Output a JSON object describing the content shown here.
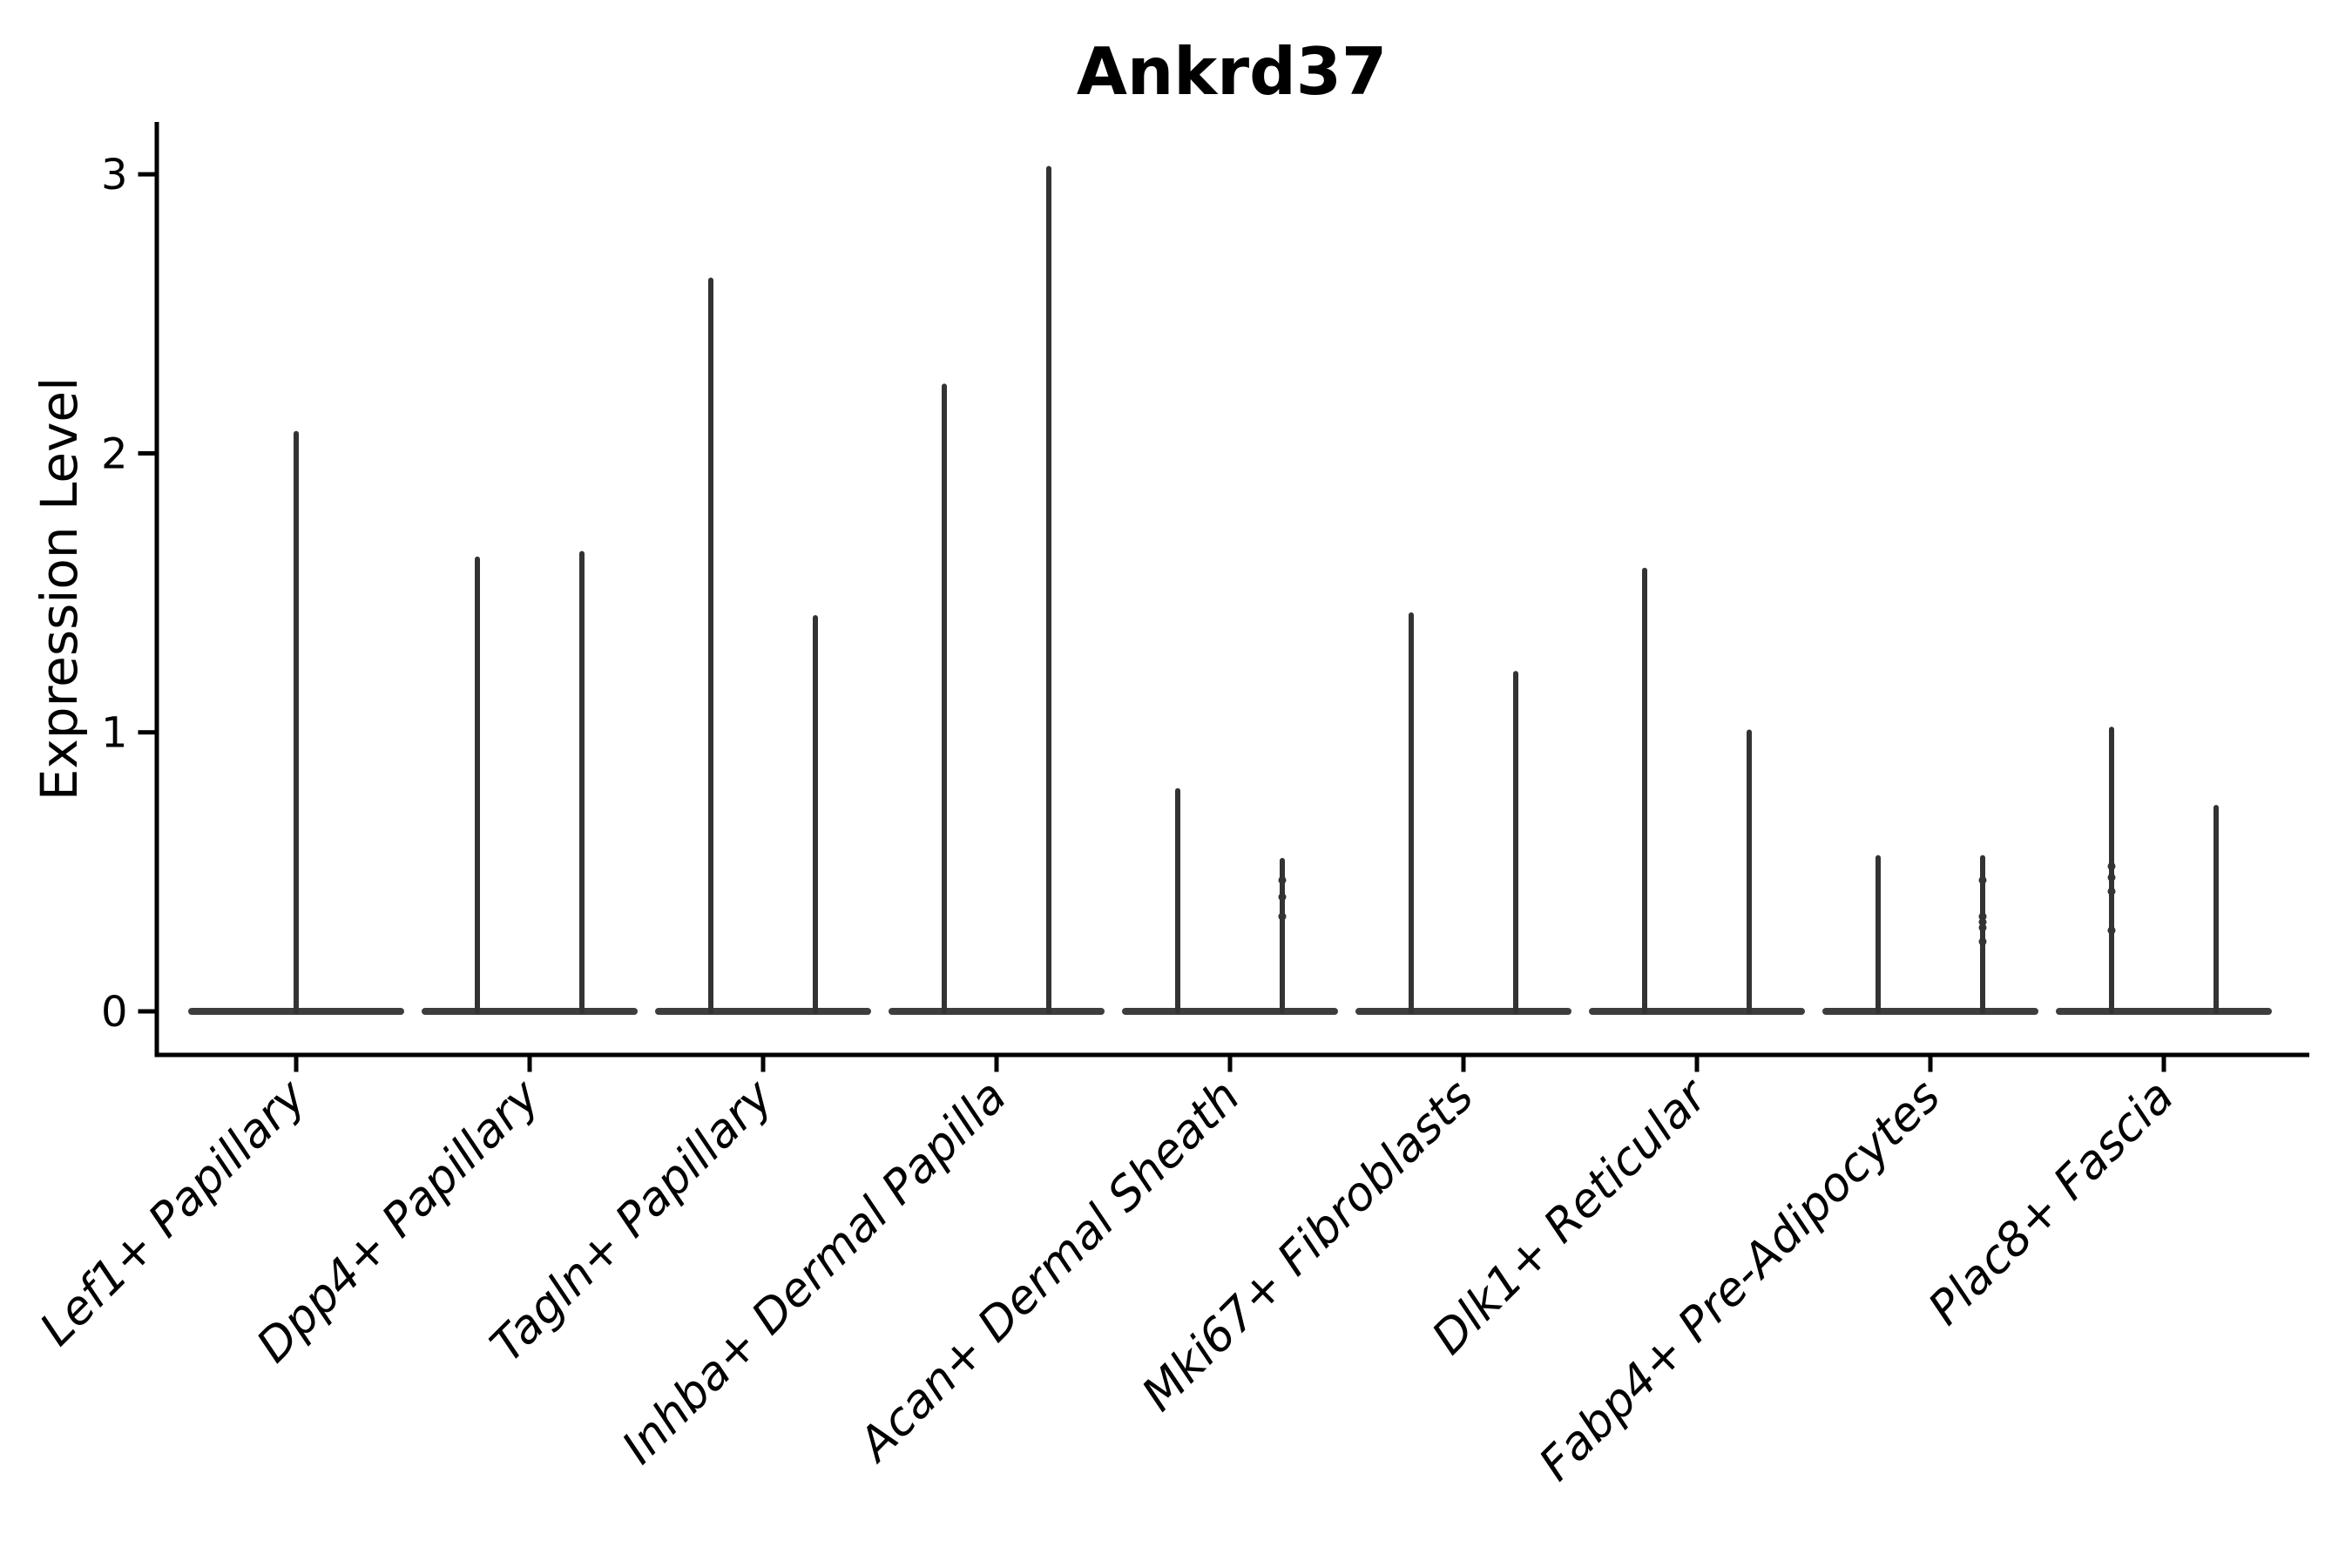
{
  "chart_data": {
    "type": "violin",
    "title": "Ankrd37",
    "xlabel": "",
    "ylabel": "Expression Level",
    "ylim": [
      -0.16,
      3.19
    ],
    "yticks": [
      0,
      1,
      2,
      3
    ],
    "grid": false,
    "legend": "none",
    "background": "#ffffff",
    "categories": [
      "Lef1+ Papillary",
      "Dpp4+ Papillary",
      "Tagln+ Papillary",
      "Inhba+ Dermal Papilla",
      "Acan+ Dermal Sheath",
      "Mki67+ Fibroblasts",
      "Dlk1+ Reticular",
      "Fabp4+ Pre-Adipocytes",
      "Plac8+ Fascia"
    ],
    "style_note": "collapsed violins: wide flat base at 0 expression with a thin spike up to the max expression; two dodged violins per category except the first which has one full-width violin",
    "groups": [
      {
        "category": "Lef1+ Papillary",
        "violins": [
          {
            "max_expression": 2.08
          }
        ]
      },
      {
        "category": "Dpp4+ Papillary",
        "violins": [
          {
            "max_expression": 1.63
          },
          {
            "max_expression": 1.65
          }
        ]
      },
      {
        "category": "Tagln+ Papillary",
        "violins": [
          {
            "max_expression": 2.63
          },
          {
            "max_expression": 1.42
          }
        ]
      },
      {
        "category": "Inhba+ Dermal Papilla",
        "violins": [
          {
            "max_expression": 2.25
          },
          {
            "max_expression": 3.03
          }
        ]
      },
      {
        "category": "Acan+ Dermal Sheath",
        "violins": [
          {
            "max_expression": 0.8
          },
          {
            "max_expression": 0.55,
            "jitter_points": [
              0.47,
              0.41,
              0.34
            ]
          }
        ]
      },
      {
        "category": "Mki67+ Fibroblasts",
        "violins": [
          {
            "max_expression": 1.43
          },
          {
            "max_expression": 1.22
          }
        ]
      },
      {
        "category": "Dlk1+ Reticular",
        "violins": [
          {
            "max_expression": 1.59
          },
          {
            "max_expression": 1.01
          }
        ]
      },
      {
        "category": "Fabp4+ Pre-Adipocytes",
        "violins": [
          {
            "max_expression": 0.56
          },
          {
            "max_expression": 0.56,
            "jitter_points": [
              0.47,
              0.34,
              0.32,
              0.3,
              0.25
            ]
          }
        ]
      },
      {
        "category": "Plac8+ Fascia",
        "violins": [
          {
            "max_expression": 1.02,
            "jitter_points": [
              0.52,
              0.48,
              0.43,
              0.29
            ]
          },
          {
            "max_expression": 0.74
          }
        ]
      }
    ],
    "colors": {
      "violin": "#333333",
      "baseline": "#3d3d3d",
      "axis": "#000000",
      "text": "#000000"
    }
  }
}
